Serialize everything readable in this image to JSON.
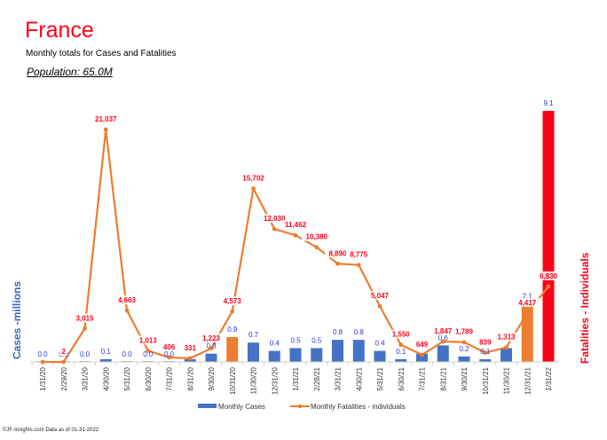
{
  "header": {
    "title": "France",
    "subtitle": "Monthly totals for Cases and Fatalities",
    "population": "Population: 65.0M"
  },
  "footer": "©JF-Insights.com  Data as of 01-31-2022",
  "colors": {
    "cases_bar": "#4472c4",
    "highlight_bar": "#ed7d31",
    "latest_bar": "#ff0018",
    "fatality_line": "#ed7d31",
    "fatality_label": "#ff0018",
    "cases_label": "#2a35d8"
  },
  "chart_data": {
    "type": "bar",
    "title": "France",
    "subtitle": "Monthly totals for Cases and Fatalities",
    "categories": [
      "1/31/20",
      "2/29/20",
      "3/31/20",
      "4/30/20",
      "5/31/20",
      "6/30/20",
      "7/31/20",
      "8/31/20",
      "9/30/20",
      "10/31/20",
      "11/30/20",
      "12/31/20",
      "1/31/21",
      "2/28/21",
      "3/31/21",
      "4/30/21",
      "5/31/21",
      "6/30/21",
      "7/31/21",
      "8/31/21",
      "9/30/21",
      "10/31/21",
      "11/30/21",
      "12/31/21",
      "1/31/22"
    ],
    "series": [
      {
        "name": "Monthly Cases",
        "type": "bar",
        "axis": "left",
        "values": [
          0.0,
          0.0,
          0.0,
          0.1,
          0.0,
          0.0,
          0.0,
          0.1,
          0.3,
          0.9,
          0.7,
          0.4,
          0.5,
          0.5,
          0.8,
          0.8,
          0.4,
          0.1,
          0.3,
          0.6,
          0.2,
          0.1,
          0.5,
          2.1,
          9.1
        ],
        "labels": [
          "0.0",
          "0.0",
          "0.0",
          "0.1",
          "0.0",
          "0.0",
          "0.0",
          "",
          "0.3",
          "0.9",
          "0.7",
          "0.4",
          "0.5",
          "0.5",
          "0.8",
          "0.8",
          "0.4",
          "0.1",
          "",
          "0.6",
          "0.2",
          "0.1",
          "",
          "2.1",
          "9.1"
        ],
        "bar_colors": [
          "blue",
          "blue",
          "blue",
          "blue",
          "blue",
          "blue",
          "blue",
          "blue",
          "blue",
          "orange",
          "blue",
          "blue",
          "blue",
          "blue",
          "blue",
          "blue",
          "blue",
          "blue",
          "blue",
          "blue",
          "blue",
          "blue",
          "blue",
          "orange",
          "red"
        ]
      },
      {
        "name": "Monthly Fatalities - individuals",
        "type": "line",
        "axis": "right",
        "values": [
          0,
          2,
          3015,
          21037,
          4663,
          1013,
          406,
          331,
          1223,
          4573,
          15702,
          12030,
          11462,
          10380,
          8890,
          8775,
          5047,
          1550,
          649,
          1847,
          1789,
          839,
          1313,
          4417,
          6830
        ],
        "labels": [
          "",
          "2",
          "3,015",
          "21,037",
          "4,663",
          "1,013",
          "406",
          "331",
          "1,223",
          "4,573",
          "15,702",
          "12,030",
          "11,462",
          "10,380",
          "8,890",
          "8,775",
          "5,047",
          "1,550",
          "649",
          "1,847",
          "1,789",
          "839",
          "1,313",
          "4,417",
          "6,830"
        ]
      }
    ],
    "ylabel_left": "Cases -millions",
    "ylabel_right": "Fatalities - Individuals",
    "ylim_left": [
      0,
      9.1
    ],
    "ylim_right": [
      0,
      21037
    ],
    "grid": false,
    "legend": {
      "position": "bottom",
      "entries": [
        "Monthly Cases",
        "Monthly Fatalities - individuals"
      ]
    }
  }
}
